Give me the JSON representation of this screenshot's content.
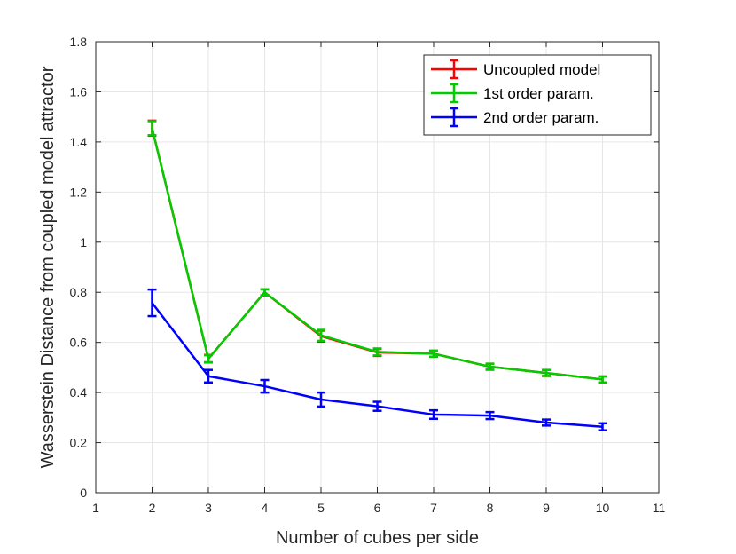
{
  "chart_data": {
    "type": "line",
    "xlabel": "Number of cubes per side",
    "ylabel": "Wasserstein Distance from coupled model attractor",
    "xlim": [
      1,
      11
    ],
    "ylim": [
      0,
      1.8
    ],
    "xticks": [
      1,
      2,
      3,
      4,
      5,
      6,
      7,
      8,
      9,
      10,
      11
    ],
    "yticks": [
      0,
      0.2,
      0.4,
      0.6,
      0.8,
      1,
      1.2,
      1.4,
      1.6,
      1.8
    ],
    "xtick_labels": [
      "1",
      "2",
      "3",
      "4",
      "5",
      "6",
      "7",
      "8",
      "9",
      "10",
      "11"
    ],
    "ytick_labels": [
      "0",
      "0.2",
      "0.4",
      "0.6",
      "0.8",
      "1",
      "1.2",
      "1.4",
      "1.6",
      "1.8"
    ],
    "grid": true,
    "legend_position": "top-right",
    "x": [
      2,
      3,
      4,
      5,
      6,
      7,
      8,
      9,
      10
    ],
    "series": [
      {
        "name": "Uncoupled model",
        "color": "#ff0000",
        "values": [
          1.455,
          0.535,
          0.8,
          0.625,
          0.56,
          0.555,
          0.503,
          0.478,
          0.452
        ],
        "errors": [
          0.03,
          0.015,
          0.012,
          0.022,
          0.014,
          0.012,
          0.012,
          0.012,
          0.012
        ]
      },
      {
        "name": "1st order param.",
        "color": "#00cc00",
        "values": [
          1.455,
          0.535,
          0.8,
          0.628,
          0.562,
          0.555,
          0.503,
          0.478,
          0.452
        ],
        "errors": [
          0.028,
          0.014,
          0.012,
          0.022,
          0.014,
          0.012,
          0.012,
          0.012,
          0.012
        ]
      },
      {
        "name": "2nd order param.",
        "color": "#0000ff",
        "values": [
          0.758,
          0.465,
          0.425,
          0.372,
          0.345,
          0.312,
          0.308,
          0.28,
          0.263
        ],
        "errors": [
          0.053,
          0.025,
          0.025,
          0.028,
          0.018,
          0.017,
          0.014,
          0.012,
          0.014
        ]
      }
    ]
  }
}
